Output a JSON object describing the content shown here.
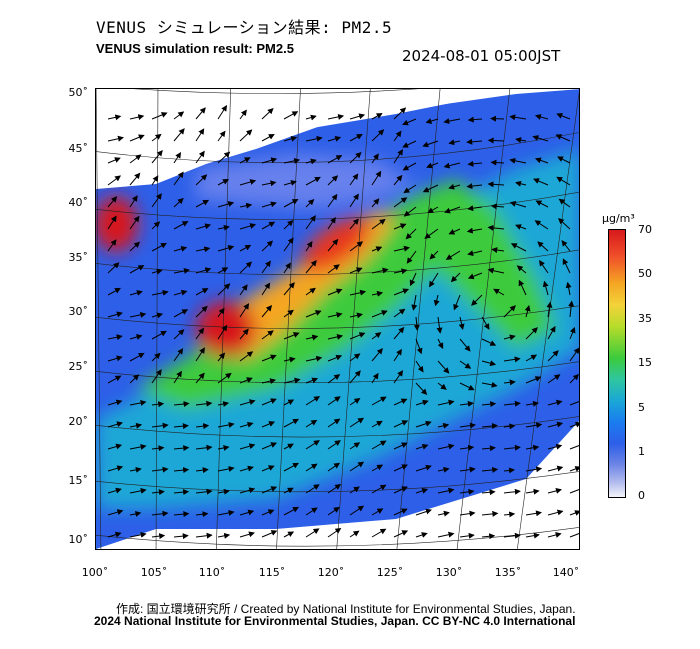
{
  "header": {
    "title_jp": "VENUS シミュレーション結果: PM2.5",
    "title_en": "VENUS simulation result: PM2.5",
    "timestamp": "2024-08-01 05:00JST"
  },
  "map": {
    "latitude_labels": [
      "50˚",
      "45˚",
      "40˚",
      "35˚",
      "30˚",
      "25˚",
      "20˚",
      "15˚",
      "10˚"
    ],
    "longitude_labels": [
      "100˚",
      "105˚",
      "110˚",
      "115˚",
      "120˚",
      "125˚",
      "130˚",
      "135˚",
      "140˚"
    ],
    "colors": {
      "very_high": "#d7191c",
      "high": "#f5a623",
      "moderate": "#3ccb3c",
      "low": "#1aa7d6",
      "very_low": "#2d5fe8",
      "background": "#ffffff"
    }
  },
  "colorbar": {
    "unit": "μg/m³",
    "ticks": [
      "70",
      "50",
      "35",
      "15",
      "5",
      "1",
      "0"
    ]
  },
  "footer": {
    "credit": "作成: 国立環境研究所 / Created by National Institute for Environmental Studies, Japan.",
    "license": "2024 National Institute for Environmental Studies, Japan. CC BY-NC 4.0 International"
  }
}
